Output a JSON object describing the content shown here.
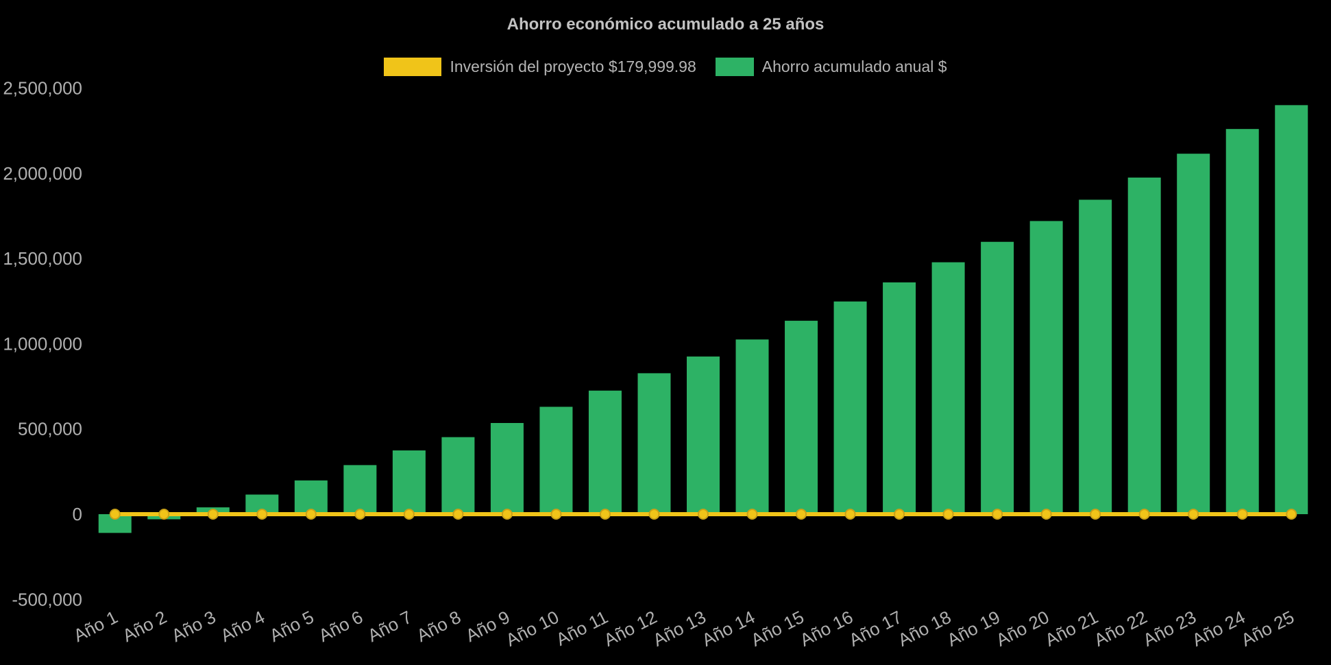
{
  "page": {
    "background": "#000000",
    "text_color": "#b0b0b0"
  },
  "chart_data": {
    "type": "bar",
    "title": "Ahorro económico acumulado a 25 años",
    "categories": [
      "Año 1",
      "Año 2",
      "Año 3",
      "Año 4",
      "Año 5",
      "Año 6",
      "Año 7",
      "Año 8",
      "Año 9",
      "Año 10",
      "Año 11",
      "Año 12",
      "Año 13",
      "Año 14",
      "Año 15",
      "Año 16",
      "Año 17",
      "Año 18",
      "Año 19",
      "Año 20",
      "Año 21",
      "Año 22",
      "Año 23",
      "Año 24",
      "Año 25"
    ],
    "series": [
      {
        "name": "Inversión del proyecto $179,999.98",
        "type": "line",
        "color": "#f0c419",
        "point_border_color": "#caa117",
        "values": [
          0,
          0,
          0,
          0,
          0,
          0,
          0,
          0,
          0,
          0,
          0,
          0,
          0,
          0,
          0,
          0,
          0,
          0,
          0,
          0,
          0,
          0,
          0,
          0,
          0
        ]
      },
      {
        "name": "Ahorro acumulado anual $",
        "type": "bar",
        "color": "#2db265",
        "values": [
          -110000,
          -30000,
          40000,
          115000,
          198000,
          288000,
          374000,
          452000,
          535000,
          630000,
          725000,
          827000,
          925000,
          1025000,
          1135000,
          1248000,
          1360000,
          1478000,
          1598000,
          1720000,
          1845000,
          1975000,
          2115000,
          2260000,
          2400000
        ]
      }
    ],
    "ylim": [
      -500000,
      2500000
    ],
    "yticks": [
      -500000,
      0,
      500000,
      1000000,
      1500000,
      2000000,
      2500000
    ],
    "ytick_labels": [
      "-500,000",
      "0",
      "500,000",
      "1,000,000",
      "1,500,000",
      "2,000,000",
      "2,500,000"
    ],
    "xlabel": "",
    "ylabel": "",
    "grid": false,
    "legend_position": "top",
    "background": "#000000"
  }
}
